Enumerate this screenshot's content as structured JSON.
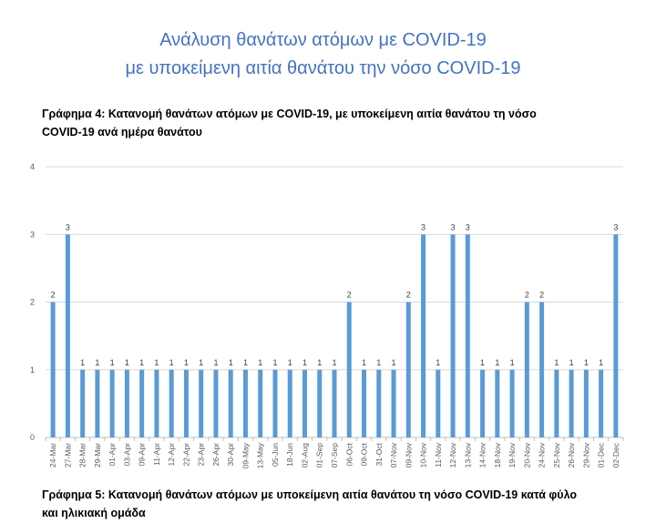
{
  "header": {
    "title_line1": "Ανάλυση θανάτων ατόμων με COVID-19",
    "title_line2": "με υποκείμενη αιτία θανάτου την νόσο COVID-19"
  },
  "chart4_caption": {
    "line1": "Γράφημα 4: Κατανομή θανάτων ατόμων με COVID-19, με υποκείμενη αιτία θανάτου τη νόσο",
    "line2": "COVID-19 ανά ημέρα θανάτου"
  },
  "chart5_caption": {
    "line1": "Γράφημα 5: Κατανομή θανάτων ατόμων με υποκείμενη αιτία θανάτου τη νόσο COVID-19 κατά φύλο",
    "line2": "και ηλικιακή ομάδα"
  },
  "chart_data": {
    "type": "bar",
    "title": "",
    "xlabel": "",
    "ylabel": "",
    "ylim": [
      0,
      4
    ],
    "yticks": [
      0,
      1,
      2,
      3,
      4
    ],
    "grid": true,
    "bar_color": "#5b9bd5",
    "gridline_color": "#d9d9d9",
    "categories": [
      "24-Mar",
      "27-Mar",
      "28-Mar",
      "29-Mar",
      "01-Apr",
      "03-Apr",
      "09-Apr",
      "11-Apr",
      "12-Apr",
      "22-Apr",
      "23-Apr",
      "26-Apr",
      "30-Apr",
      "09-May",
      "13-May",
      "05-Jun",
      "18-Jun",
      "02-Aug",
      "01-Sep",
      "07-Sep",
      "06-Oct",
      "09-Oct",
      "31-Oct",
      "07-Nov",
      "09-Nov",
      "10-Nov",
      "11-Nov",
      "12-Nov",
      "13-Nov",
      "14-Nov",
      "18-Nov",
      "19-Nov",
      "20-Nov",
      "24-Nov",
      "25-Nov",
      "26-Nov",
      "29-Nov",
      "01-Dec",
      "02-Dec"
    ],
    "tick_labels": [
      "24-Mar",
      "27-Mar",
      "28-Mar",
      "29-Mar",
      "01-Apr",
      "03-Apr",
      "09-Apr",
      "11-Apr",
      "12-Apr",
      "22-Apr",
      "23-Apr",
      "26-Apr",
      "30-Apr",
      "09-May",
      "13-May",
      "05-Jun",
      "18-Jun",
      "02-Aug",
      "01-Sep",
      "07-Sep",
      "06-Oct",
      "09-Oct",
      "31-Oct",
      "07-Nov",
      "09-Nov",
      "10-Nov",
      "11-Nov",
      "12-Nov",
      "13-Nov",
      "14-Nov",
      "18-Nov",
      "19-Nov",
      "20-Nov",
      "24-Nov",
      "25-Nov",
      "26-Nov",
      "29-Nov",
      "01-Dec",
      "02-Dec"
    ],
    "values": [
      2,
      3,
      1,
      1,
      1,
      1,
      1,
      1,
      1,
      1,
      1,
      1,
      1,
      1,
      1,
      1,
      1,
      1,
      1,
      1,
      2,
      1,
      1,
      1,
      2,
      3,
      1,
      3,
      3,
      1,
      1,
      1,
      2,
      2,
      1,
      1,
      1,
      1,
      3
    ]
  }
}
